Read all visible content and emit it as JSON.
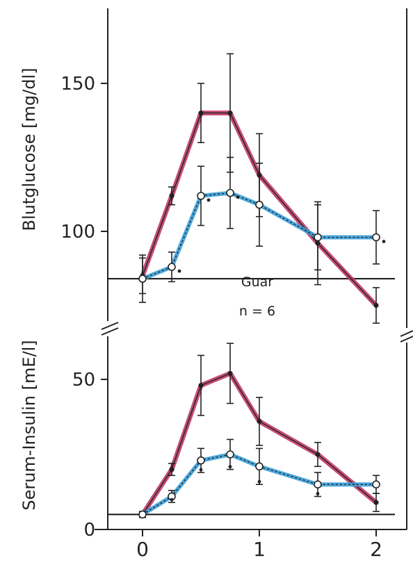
{
  "chart_data": [
    {
      "type": "line",
      "ylabel": "Blutglucose [mg/dl]",
      "yticks": [
        100,
        150
      ],
      "ylim": [
        72,
        170
      ],
      "xlim": [
        -0.2,
        2.2
      ],
      "baseline": 84,
      "annotation": [
        "Guar",
        "n = 6"
      ],
      "series": [
        {
          "color": "#c03a6a",
          "marker": "filled",
          "x": [
            0,
            0.25,
            0.5,
            0.75,
            1.0,
            1.5,
            2.0
          ],
          "y": [
            85,
            112,
            140,
            140,
            119,
            96,
            75
          ],
          "err": [
            6,
            3,
            10,
            20,
            14,
            14,
            6
          ]
        },
        {
          "color": "#3aa0d8",
          "marker": "open",
          "dashed_overlay": true,
          "x": [
            0,
            0.25,
            0.5,
            0.75,
            1.0,
            1.5,
            2.0
          ],
          "y": [
            84,
            88,
            112,
            113,
            109,
            98,
            98
          ],
          "err": [
            8,
            5,
            10,
            12,
            14,
            11,
            9
          ],
          "sig": [
            false,
            true,
            true,
            true,
            false,
            false,
            true
          ]
        }
      ]
    },
    {
      "type": "line",
      "ylabel": "Serum-Insulin [mE/l]",
      "yticks": [
        0,
        50
      ],
      "ylim": [
        0,
        62
      ],
      "xlim": [
        -0.2,
        2.2
      ],
      "xticks": [
        0,
        1,
        2
      ],
      "baseline": 5,
      "series": [
        {
          "color": "#c03a6a",
          "marker": "filled",
          "x": [
            0,
            0.25,
            0.5,
            0.75,
            1.0,
            1.5,
            2.0
          ],
          "y": [
            5,
            20,
            48,
            52,
            36,
            25,
            9
          ],
          "err": [
            1,
            2,
            10,
            10,
            8,
            4,
            3
          ]
        },
        {
          "color": "#3aa0d8",
          "marker": "open",
          "dashed_overlay": true,
          "x": [
            0,
            0.25,
            0.5,
            0.75,
            1.0,
            1.5,
            2.0
          ],
          "y": [
            5,
            11,
            23,
            25,
            21,
            15,
            15
          ],
          "err": [
            1,
            2,
            4,
            5,
            6,
            4,
            3
          ],
          "sig": [
            false,
            true,
            true,
            true,
            true,
            true,
            false
          ]
        }
      ]
    }
  ],
  "colors": {
    "frame": "#222222",
    "red_series": "#c03a6a",
    "blue_series": "#3aa0d8"
  }
}
